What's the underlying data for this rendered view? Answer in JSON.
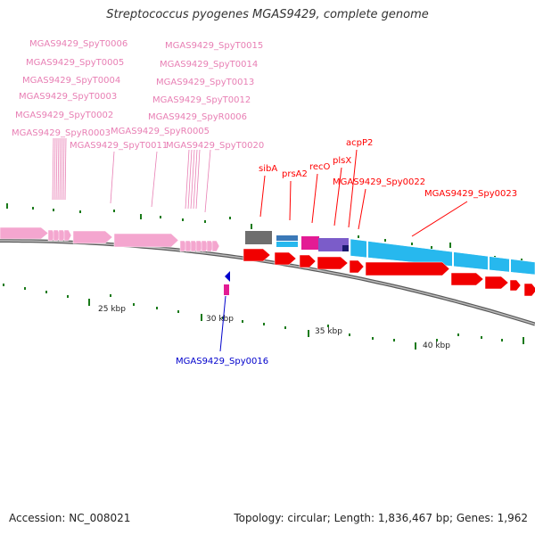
{
  "map": {
    "title": "Streptococcus pyogenes MGAS9429, complete genome",
    "accession": "Accession: NC_008021",
    "stats": "Topology: circular; Length: 1,836,467 bp; Genes: 1,962"
  },
  "colors": {
    "trna": "#f4a6cf",
    "trna_label": "#e87fb4",
    "cds": "#ff0000",
    "cds_fill": "#f10000",
    "misc_gray": "#6e6e6e",
    "cyan": "#27b8ee",
    "blue_label": "#0000cc",
    "magenta": "#e31b94",
    "purple": "#7b5cc9",
    "navy": "#1a1a6e",
    "tick": "#1a7a1a",
    "backbone": "#8a8a8a"
  },
  "scale_labels": [
    "25 kbp",
    "30 kbp",
    "35 kbp",
    "40 kbp"
  ],
  "trna_labels": [
    "MGAS9429_SpyT0006",
    "MGAS9429_SpyT0005",
    "MGAS9429_SpyT0004",
    "MGAS9429_SpyT0003",
    "MGAS9429_SpyT0002",
    "MGAS9429_SpyR0003",
    "MGAS9429_SpyT0011",
    "MGAS9429_SpyT0015",
    "MGAS9429_SpyT0014",
    "MGAS9429_SpyT0013",
    "MGAS9429_SpyT0012",
    "MGAS9429_SpyR0006",
    "MGAS9429_SpyR0005",
    "MGAS9429_SpyT0020"
  ],
  "gene_labels": [
    "sibA",
    "prsA2",
    "recO",
    "plsX",
    "acpP2",
    "MGAS9429_Spy0022",
    "MGAS9429_Spy0023"
  ],
  "reverse_labels": [
    "MGAS9429_Spy0016"
  ]
}
